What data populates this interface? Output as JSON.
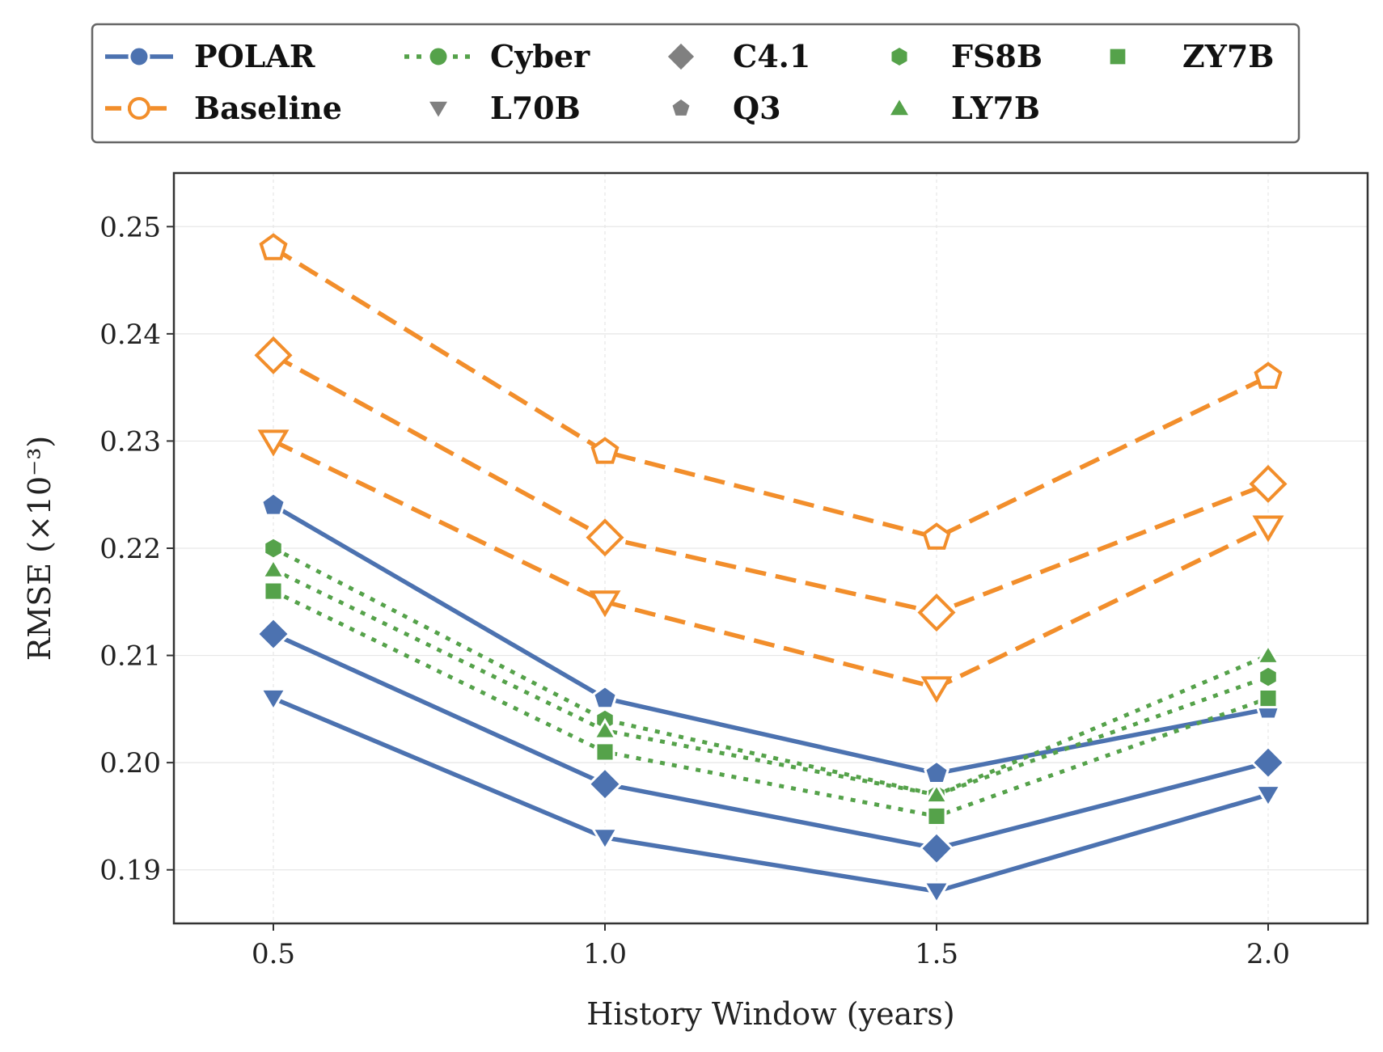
{
  "colors": {
    "polar": "#4c72b0",
    "baseline": "#f28e2b",
    "cyber": "#55a24a",
    "legend_gray": "#808080",
    "grid": "#e6e6e6",
    "frame": "#333333"
  },
  "legend": {
    "items": [
      {
        "label": "POLAR",
        "kind": "line",
        "style": "solid",
        "color": "#4c72b0",
        "marker": "circle",
        "filled": true
      },
      {
        "label": "Baseline",
        "kind": "line",
        "style": "dashed",
        "color": "#f28e2b",
        "marker": "circle",
        "filled": false
      },
      {
        "label": "Cyber",
        "kind": "line",
        "style": "dotted",
        "color": "#55a24a",
        "marker": "circle",
        "filled": true
      },
      {
        "label": "L70B",
        "kind": "marker",
        "color": "#808080",
        "marker": "triangle-down"
      },
      {
        "label": "C4.1",
        "kind": "marker",
        "color": "#808080",
        "marker": "diamond"
      },
      {
        "label": "Q3",
        "kind": "marker",
        "color": "#808080",
        "marker": "pentagon"
      },
      {
        "label": "FS8B",
        "kind": "marker",
        "color": "#55a24a",
        "marker": "hexagon"
      },
      {
        "label": "LY7B",
        "kind": "marker",
        "color": "#55a24a",
        "marker": "triangle-up"
      },
      {
        "label": "ZY7B",
        "kind": "marker",
        "color": "#55a24a",
        "marker": "square"
      }
    ]
  },
  "chart_data": {
    "type": "line",
    "xlabel": "History Window (years)",
    "ylabel": "RMSE (×10⁻³)",
    "x": [
      0.5,
      1.0,
      1.5,
      2.0
    ],
    "xticks": [
      "0.5",
      "1.0",
      "1.5",
      "2.0"
    ],
    "yticks": [
      "0.19",
      "0.20",
      "0.21",
      "0.22",
      "0.23",
      "0.24",
      "0.25"
    ],
    "ytick_values": [
      0.19,
      0.2,
      0.21,
      0.22,
      0.23,
      0.24,
      0.25
    ],
    "xlim": [
      0.35,
      2.15
    ],
    "ylim": [
      0.185,
      0.255
    ],
    "grid": true,
    "legend_position": "top (above plot)",
    "series": [
      {
        "group": "Baseline",
        "model": "Q3",
        "color": "#f28e2b",
        "style": "dashed",
        "marker": "pentagon",
        "filled": false,
        "values": [
          0.248,
          0.229,
          0.221,
          0.236
        ]
      },
      {
        "group": "Baseline",
        "model": "C4.1",
        "color": "#f28e2b",
        "style": "dashed",
        "marker": "diamond",
        "filled": false,
        "values": [
          0.238,
          0.221,
          0.214,
          0.226
        ]
      },
      {
        "group": "Baseline",
        "model": "L70B",
        "color": "#f28e2b",
        "style": "dashed",
        "marker": "triangle-down",
        "filled": false,
        "values": [
          0.23,
          0.215,
          0.207,
          0.222
        ]
      },
      {
        "group": "POLAR",
        "model": "Q3",
        "color": "#4c72b0",
        "style": "solid",
        "marker": "pentagon",
        "filled": true,
        "values": [
          0.224,
          0.206,
          0.199,
          0.205
        ]
      },
      {
        "group": "POLAR",
        "model": "C4.1",
        "color": "#4c72b0",
        "style": "solid",
        "marker": "diamond",
        "filled": true,
        "values": [
          0.212,
          0.198,
          0.192,
          0.2
        ]
      },
      {
        "group": "POLAR",
        "model": "L70B",
        "color": "#4c72b0",
        "style": "solid",
        "marker": "triangle-down",
        "filled": true,
        "values": [
          0.206,
          0.193,
          0.188,
          0.197
        ]
      },
      {
        "group": "Cyber",
        "model": "FS8B",
        "color": "#55a24a",
        "style": "dotted",
        "marker": "hexagon",
        "filled": true,
        "values": [
          0.22,
          0.204,
          0.197,
          0.208
        ]
      },
      {
        "group": "Cyber",
        "model": "LY7B",
        "color": "#55a24a",
        "style": "dotted",
        "marker": "triangle-up",
        "filled": true,
        "values": [
          0.218,
          0.203,
          0.197,
          0.21
        ]
      },
      {
        "group": "Cyber",
        "model": "ZY7B",
        "color": "#55a24a",
        "style": "dotted",
        "marker": "square",
        "filled": true,
        "values": [
          0.216,
          0.201,
          0.195,
          0.206
        ]
      }
    ]
  }
}
